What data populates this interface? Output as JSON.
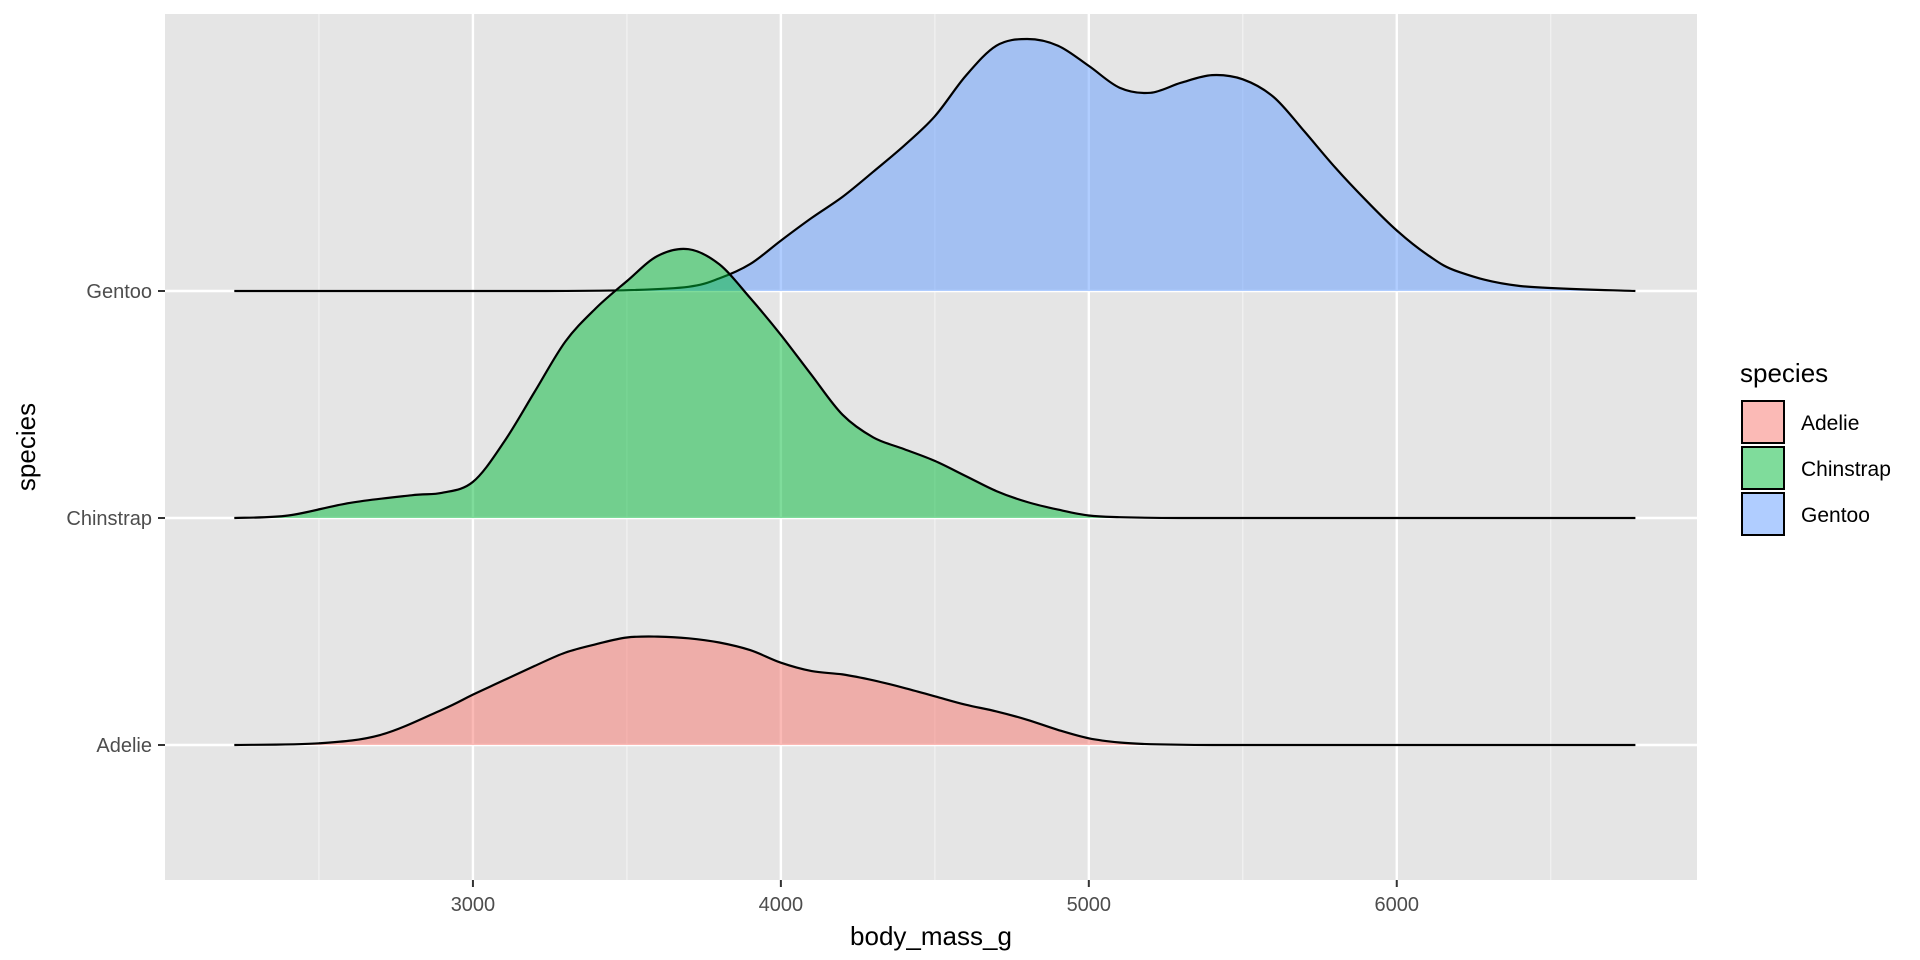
{
  "chart_data": {
    "type": "ridgeline",
    "title": "",
    "xlabel": "body_mass_g",
    "ylabel": "species",
    "xlim": [
      2000,
      6975
    ],
    "x_ticks": [
      3000,
      4000,
      5000,
      6000
    ],
    "x_minor_ticks": [
      2500,
      3500,
      4500,
      5500,
      6500
    ],
    "categories": [
      "Adelie",
      "Chinstrap",
      "Gentoo"
    ],
    "grid": true,
    "legend": {
      "title": "species",
      "position": "right",
      "items": [
        {
          "label": "Adelie",
          "color": "#F8766D"
        },
        {
          "label": "Chinstrap",
          "color": "#00BA38"
        },
        {
          "label": "Gentoo",
          "color": "#619CFF"
        }
      ]
    },
    "fill_alpha": 0.5,
    "series": [
      {
        "name": "Adelie",
        "color": "#F8766D",
        "x": [
          2225,
          2500,
          2700,
          2900,
          3000,
          3100,
          3200,
          3300,
          3400,
          3500,
          3600,
          3700,
          3800,
          3900,
          4000,
          4100,
          4200,
          4300,
          4400,
          4500,
          4600,
          4700,
          4800,
          4900,
          5000,
          5100,
          5200,
          5400,
          5700,
          6000,
          6300,
          6775
        ],
        "values": [
          0.0,
          0.02,
          0.12,
          0.42,
          0.6,
          0.77,
          0.94,
          1.1,
          1.2,
          1.28,
          1.29,
          1.27,
          1.22,
          1.13,
          0.98,
          0.88,
          0.84,
          0.77,
          0.68,
          0.58,
          0.48,
          0.4,
          0.3,
          0.18,
          0.08,
          0.03,
          0.01,
          0.0,
          0.0,
          0.0,
          0.0,
          0.0
        ]
      },
      {
        "name": "Chinstrap",
        "color": "#00BA38",
        "x": [
          2225,
          2400,
          2600,
          2800,
          2900,
          3000,
          3100,
          3200,
          3300,
          3400,
          3500,
          3600,
          3700,
          3800,
          3900,
          4000,
          4100,
          4200,
          4300,
          4400,
          4500,
          4600,
          4700,
          4800,
          4900,
          5000,
          5100,
          5300,
          5600,
          6000,
          6400,
          6775
        ],
        "values": [
          0.0,
          0.03,
          0.18,
          0.27,
          0.3,
          0.43,
          0.9,
          1.5,
          2.1,
          2.5,
          2.82,
          3.12,
          3.2,
          3.02,
          2.62,
          2.18,
          1.7,
          1.23,
          0.96,
          0.82,
          0.68,
          0.5,
          0.32,
          0.19,
          0.1,
          0.03,
          0.01,
          0.0,
          0.0,
          0.0,
          0.0,
          0.0
        ]
      },
      {
        "name": "Gentoo",
        "color": "#619CFF",
        "x": [
          2225,
          2800,
          3200,
          3500,
          3700,
          3800,
          3900,
          4000,
          4100,
          4200,
          4300,
          4400,
          4500,
          4600,
          4700,
          4800,
          4900,
          5000,
          5100,
          5200,
          5300,
          5400,
          5500,
          5600,
          5700,
          5800,
          5900,
          6000,
          6100,
          6200,
          6400,
          6775
        ],
        "values": [
          0.0,
          0.0,
          0.0,
          0.01,
          0.05,
          0.15,
          0.32,
          0.6,
          0.87,
          1.12,
          1.42,
          1.73,
          2.08,
          2.56,
          2.92,
          3.0,
          2.92,
          2.68,
          2.42,
          2.36,
          2.48,
          2.57,
          2.52,
          2.31,
          1.9,
          1.47,
          1.08,
          0.72,
          0.43,
          0.23,
          0.06,
          0.0
        ]
      }
    ]
  }
}
